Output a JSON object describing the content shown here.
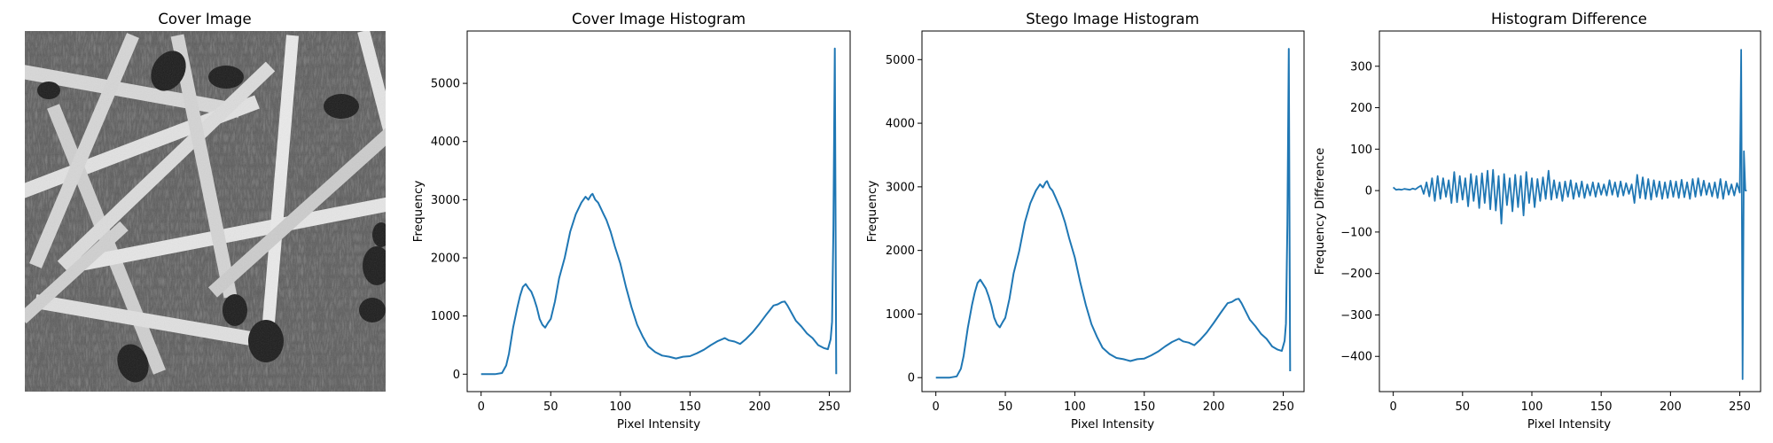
{
  "figure": {
    "cover_panel": {
      "title": "Cover Image",
      "image_description": "grayscale photograph of scattered matchsticks on a woven fabric background"
    },
    "colors": {
      "line": "#1f77b4",
      "axes": "#000000"
    }
  },
  "chart_data": [
    {
      "type": "line",
      "title": "Cover Image Histogram",
      "xlabel": "Pixel Intensity",
      "ylabel": "Frequency",
      "xlim": [
        -10,
        265
      ],
      "ylim": [
        -300,
        5900
      ],
      "xticks": [
        0,
        50,
        100,
        150,
        200,
        250
      ],
      "yticks": [
        0,
        1000,
        2000,
        3000,
        4000,
        5000
      ],
      "x": [
        0,
        5,
        10,
        15,
        18,
        20,
        23,
        26,
        28,
        30,
        32,
        34,
        36,
        38,
        40,
        42,
        44,
        46,
        48,
        50,
        53,
        56,
        60,
        64,
        68,
        72,
        75,
        77,
        79,
        80,
        82,
        84,
        86,
        88,
        90,
        93,
        96,
        100,
        104,
        108,
        112,
        116,
        120,
        125,
        130,
        135,
        140,
        145,
        150,
        155,
        160,
        165,
        170,
        175,
        178,
        182,
        186,
        190,
        195,
        200,
        205,
        210,
        213,
        216,
        218,
        220,
        223,
        226,
        230,
        234,
        238,
        242,
        246,
        249,
        251,
        252,
        253,
        254,
        255
      ],
      "y": [
        0,
        0,
        0,
        20,
        150,
        350,
        800,
        1150,
        1350,
        1500,
        1550,
        1480,
        1420,
        1300,
        1150,
        950,
        850,
        800,
        880,
        950,
        1250,
        1650,
        2000,
        2450,
        2750,
        2950,
        3050,
        3000,
        3080,
        3100,
        3000,
        2950,
        2850,
        2750,
        2650,
        2450,
        2200,
        1900,
        1500,
        1150,
        850,
        650,
        480,
        380,
        320,
        300,
        270,
        300,
        310,
        360,
        420,
        500,
        570,
        620,
        580,
        560,
        520,
        600,
        720,
        870,
        1030,
        1180,
        1200,
        1240,
        1250,
        1180,
        1050,
        920,
        820,
        700,
        620,
        500,
        450,
        430,
        600,
        900,
        2500,
        5600,
        0
      ],
      "grid": false,
      "legend": "none"
    },
    {
      "type": "line",
      "title": "Stego Image Histogram",
      "xlabel": "Pixel Intensity",
      "ylabel": "Frequency",
      "xlim": [
        -10,
        265
      ],
      "ylim": [
        -220,
        5450
      ],
      "xticks": [
        0,
        50,
        100,
        150,
        200,
        250
      ],
      "yticks": [
        0,
        1000,
        2000,
        3000,
        4000,
        5000
      ],
      "x": [
        0,
        5,
        10,
        15,
        18,
        20,
        23,
        26,
        28,
        30,
        32,
        34,
        36,
        38,
        40,
        42,
        44,
        46,
        48,
        50,
        53,
        56,
        60,
        64,
        68,
        72,
        75,
        77,
        79,
        80,
        82,
        84,
        86,
        88,
        90,
        93,
        96,
        100,
        104,
        108,
        112,
        116,
        120,
        125,
        130,
        135,
        140,
        145,
        150,
        155,
        160,
        165,
        170,
        175,
        178,
        182,
        186,
        190,
        195,
        200,
        205,
        210,
        213,
        216,
        218,
        220,
        223,
        226,
        230,
        234,
        238,
        242,
        246,
        249,
        251,
        252,
        253,
        254,
        255
      ],
      "y": [
        0,
        0,
        0,
        20,
        140,
        340,
        780,
        1140,
        1340,
        1490,
        1540,
        1470,
        1400,
        1280,
        1130,
        940,
        840,
        790,
        870,
        940,
        1240,
        1640,
        1990,
        2440,
        2740,
        2940,
        3040,
        2990,
        3070,
        3090,
        2990,
        2940,
        2840,
        2740,
        2640,
        2440,
        2190,
        1890,
        1490,
        1140,
        840,
        640,
        470,
        370,
        310,
        290,
        260,
        290,
        300,
        350,
        410,
        490,
        560,
        610,
        570,
        550,
        510,
        590,
        710,
        860,
        1020,
        1170,
        1190,
        1230,
        1240,
        1170,
        1040,
        910,
        810,
        690,
        610,
        490,
        440,
        420,
        580,
        850,
        2400,
        5170,
        100
      ],
      "grid": false,
      "legend": "none"
    },
    {
      "type": "line",
      "title": "Histogram Difference",
      "xlabel": "Pixel Intensity",
      "ylabel": "Frequency Difference",
      "xlim": [
        -10,
        265
      ],
      "ylim": [
        -485,
        385
      ],
      "xticks": [
        0,
        50,
        100,
        150,
        200,
        250
      ],
      "yticks": [
        -400,
        -300,
        -200,
        -100,
        0,
        100,
        200,
        300
      ],
      "x": [
        0,
        2,
        4,
        6,
        8,
        10,
        12,
        14,
        16,
        18,
        20,
        22,
        24,
        26,
        28,
        30,
        32,
        34,
        36,
        38,
        40,
        42,
        44,
        46,
        48,
        50,
        52,
        54,
        56,
        58,
        60,
        62,
        64,
        66,
        68,
        70,
        72,
        74,
        76,
        78,
        80,
        82,
        84,
        86,
        88,
        90,
        92,
        94,
        96,
        98,
        100,
        102,
        104,
        106,
        108,
        110,
        112,
        114,
        116,
        118,
        120,
        122,
        124,
        126,
        128,
        130,
        132,
        134,
        136,
        138,
        140,
        142,
        144,
        146,
        148,
        150,
        152,
        154,
        156,
        158,
        160,
        162,
        164,
        166,
        168,
        170,
        172,
        174,
        176,
        178,
        180,
        182,
        184,
        186,
        188,
        190,
        192,
        194,
        196,
        198,
        200,
        202,
        204,
        206,
        208,
        210,
        212,
        214,
        216,
        218,
        220,
        222,
        224,
        226,
        228,
        230,
        232,
        234,
        236,
        238,
        240,
        242,
        244,
        246,
        248,
        250,
        251,
        252,
        253,
        254,
        255
      ],
      "y": [
        8,
        2,
        3,
        2,
        4,
        3,
        2,
        5,
        3,
        8,
        12,
        -8,
        20,
        -14,
        30,
        -25,
        35,
        -20,
        30,
        -15,
        25,
        -30,
        45,
        -28,
        35,
        -22,
        30,
        -38,
        40,
        -25,
        35,
        -42,
        42,
        -30,
        48,
        -45,
        50,
        -48,
        35,
        -80,
        40,
        -35,
        30,
        -50,
        38,
        -40,
        35,
        -60,
        45,
        -30,
        30,
        -40,
        28,
        -25,
        32,
        -20,
        48,
        -22,
        25,
        -18,
        20,
        -25,
        22,
        -15,
        25,
        -20,
        18,
        -15,
        22,
        -18,
        15,
        -12,
        20,
        -15,
        18,
        -10,
        15,
        -12,
        25,
        -10,
        20,
        -15,
        22,
        -12,
        18,
        -8,
        15,
        -30,
        38,
        -18,
        32,
        -20,
        28,
        -22,
        25,
        -15,
        22,
        -20,
        20,
        -18,
        24,
        -15,
        22,
        -18,
        26,
        -16,
        20,
        -20,
        28,
        -15,
        30,
        -12,
        24,
        -10,
        18,
        -14,
        20,
        -18,
        28,
        -20,
        22,
        -10,
        15,
        -12,
        18,
        -5,
        340,
        -455,
        95,
        0,
        0
      ],
      "grid": false,
      "legend": "none"
    }
  ]
}
